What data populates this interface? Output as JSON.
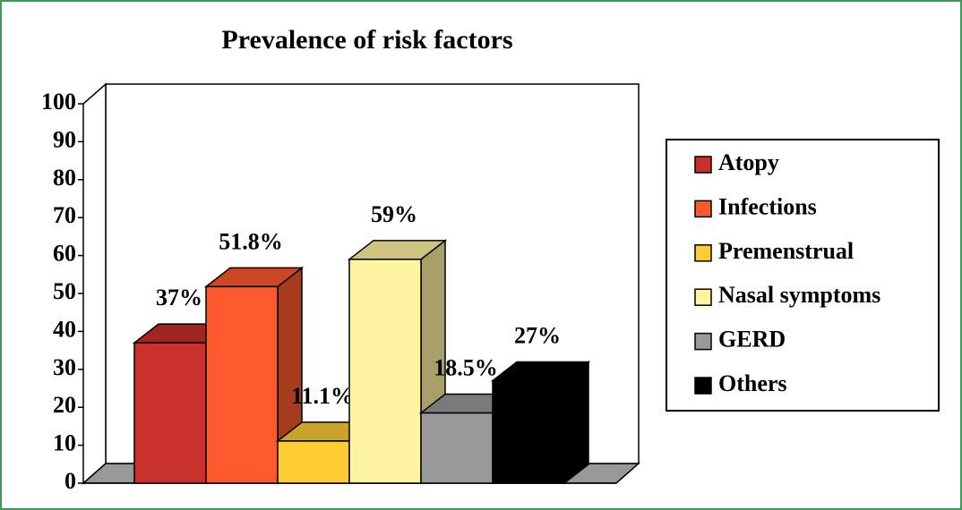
{
  "chart_data": {
    "type": "bar3d",
    "title": "Prevalence of risk factors",
    "categories": [
      null
    ],
    "series": [
      {
        "name": "Atopy",
        "color": "#c8302a",
        "values": [
          37
        ],
        "value_labels": [
          "37%"
        ]
      },
      {
        "name": "Infections",
        "color": "#ff5a2e",
        "values": [
          51.8
        ],
        "value_labels": [
          "51.8%"
        ]
      },
      {
        "name": "Premenstrual",
        "color": "#ffcc33",
        "values": [
          11.1
        ],
        "value_labels": [
          "11.1%"
        ]
      },
      {
        "name": "Nasal symptoms",
        "color": "#fff5a0",
        "values": [
          59
        ],
        "value_labels": [
          "59%"
        ]
      },
      {
        "name": "GERD",
        "color": "#999999",
        "values": [
          18.5
        ],
        "value_labels": [
          "18.5%"
        ]
      },
      {
        "name": "Others",
        "color": "#000000",
        "values": [
          27
        ],
        "value_labels": [
          "27%"
        ]
      }
    ],
    "ylim": [
      0,
      100
    ],
    "yticks": [
      0,
      10,
      20,
      30,
      40,
      50,
      60,
      70,
      80,
      90,
      100
    ],
    "legend": "right"
  }
}
